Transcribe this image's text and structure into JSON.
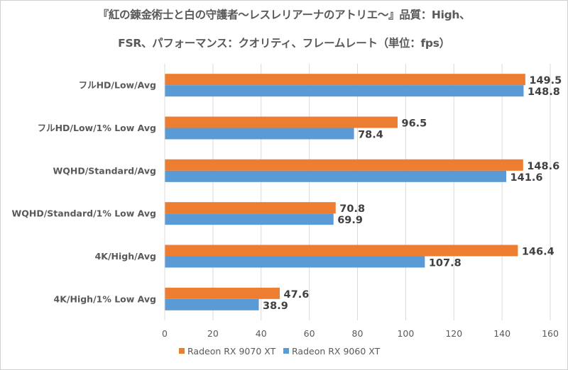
{
  "chart_data": {
    "type": "bar",
    "orientation": "horizontal",
    "title": "『紅の錬金術士と白の守護者～レスレリアーナのアトリエ～』品質：High、FSR、パフォーマンス：クオリティ、フレームレート（単位：fps）",
    "title_lines": [
      "『紅の錬金術士と白の守護者～レスレリアーナのアトリエ～』品質：High、",
      "FSR、パフォーマンス：クオリティ、フレームレート（単位：fps）"
    ],
    "xlabel": "",
    "ylabel": "",
    "categories": [
      "フルHD/Low/Avg",
      "フルHD/Low/1% Low Avg",
      "WQHD/Standard/Avg",
      "WQHD/Standard/1% Low Avg",
      "4K/High/Avg",
      "4K/High/1% Low Avg"
    ],
    "series": [
      {
        "name": "Radeon RX 9070 XT",
        "color": "#ED7D31",
        "values": [
          149.5,
          96.5,
          148.6,
          70.8,
          146.4,
          47.6
        ]
      },
      {
        "name": "Radeon RX 9060 XT",
        "color": "#5B9BD5",
        "values": [
          148.8,
          78.4,
          141.6,
          69.9,
          107.8,
          38.9
        ]
      }
    ],
    "xlim": [
      0,
      160
    ],
    "xticks": [
      0,
      20,
      40,
      60,
      80,
      100,
      120,
      140,
      160
    ],
    "grid": true,
    "legend": "bottom",
    "data_labels": true
  }
}
